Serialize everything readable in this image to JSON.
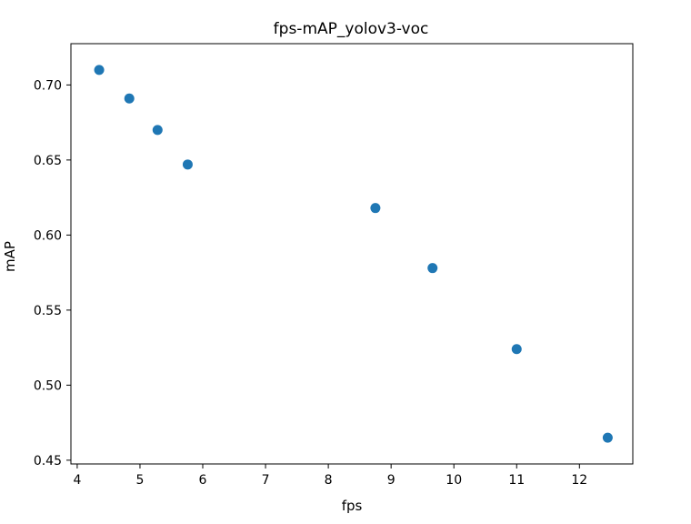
{
  "chart_data": {
    "type": "scatter",
    "title": "fps-mAP_yolov3-voc",
    "xlabel": "fps",
    "ylabel": "mAP",
    "xlim": [
      3.9,
      12.85
    ],
    "ylim": [
      0.4475,
      0.7275
    ],
    "x_ticks": [
      4,
      5,
      6,
      7,
      8,
      9,
      10,
      11,
      12
    ],
    "x_tick_labels": [
      "4",
      "5",
      "6",
      "7",
      "8",
      "9",
      "10",
      "11",
      "12"
    ],
    "y_ticks": [
      0.45,
      0.5,
      0.55,
      0.6,
      0.65,
      0.7
    ],
    "y_tick_labels": [
      "0.45",
      "0.50",
      "0.55",
      "0.60",
      "0.65",
      "0.70"
    ],
    "grid": false,
    "legend": "none",
    "marker_color": "#1f77b4",
    "points": [
      {
        "x": 4.35,
        "y": 0.71
      },
      {
        "x": 4.83,
        "y": 0.691
      },
      {
        "x": 5.28,
        "y": 0.67
      },
      {
        "x": 5.76,
        "y": 0.647
      },
      {
        "x": 8.75,
        "y": 0.618
      },
      {
        "x": 9.66,
        "y": 0.578
      },
      {
        "x": 11.0,
        "y": 0.524
      },
      {
        "x": 12.45,
        "y": 0.465
      }
    ]
  }
}
